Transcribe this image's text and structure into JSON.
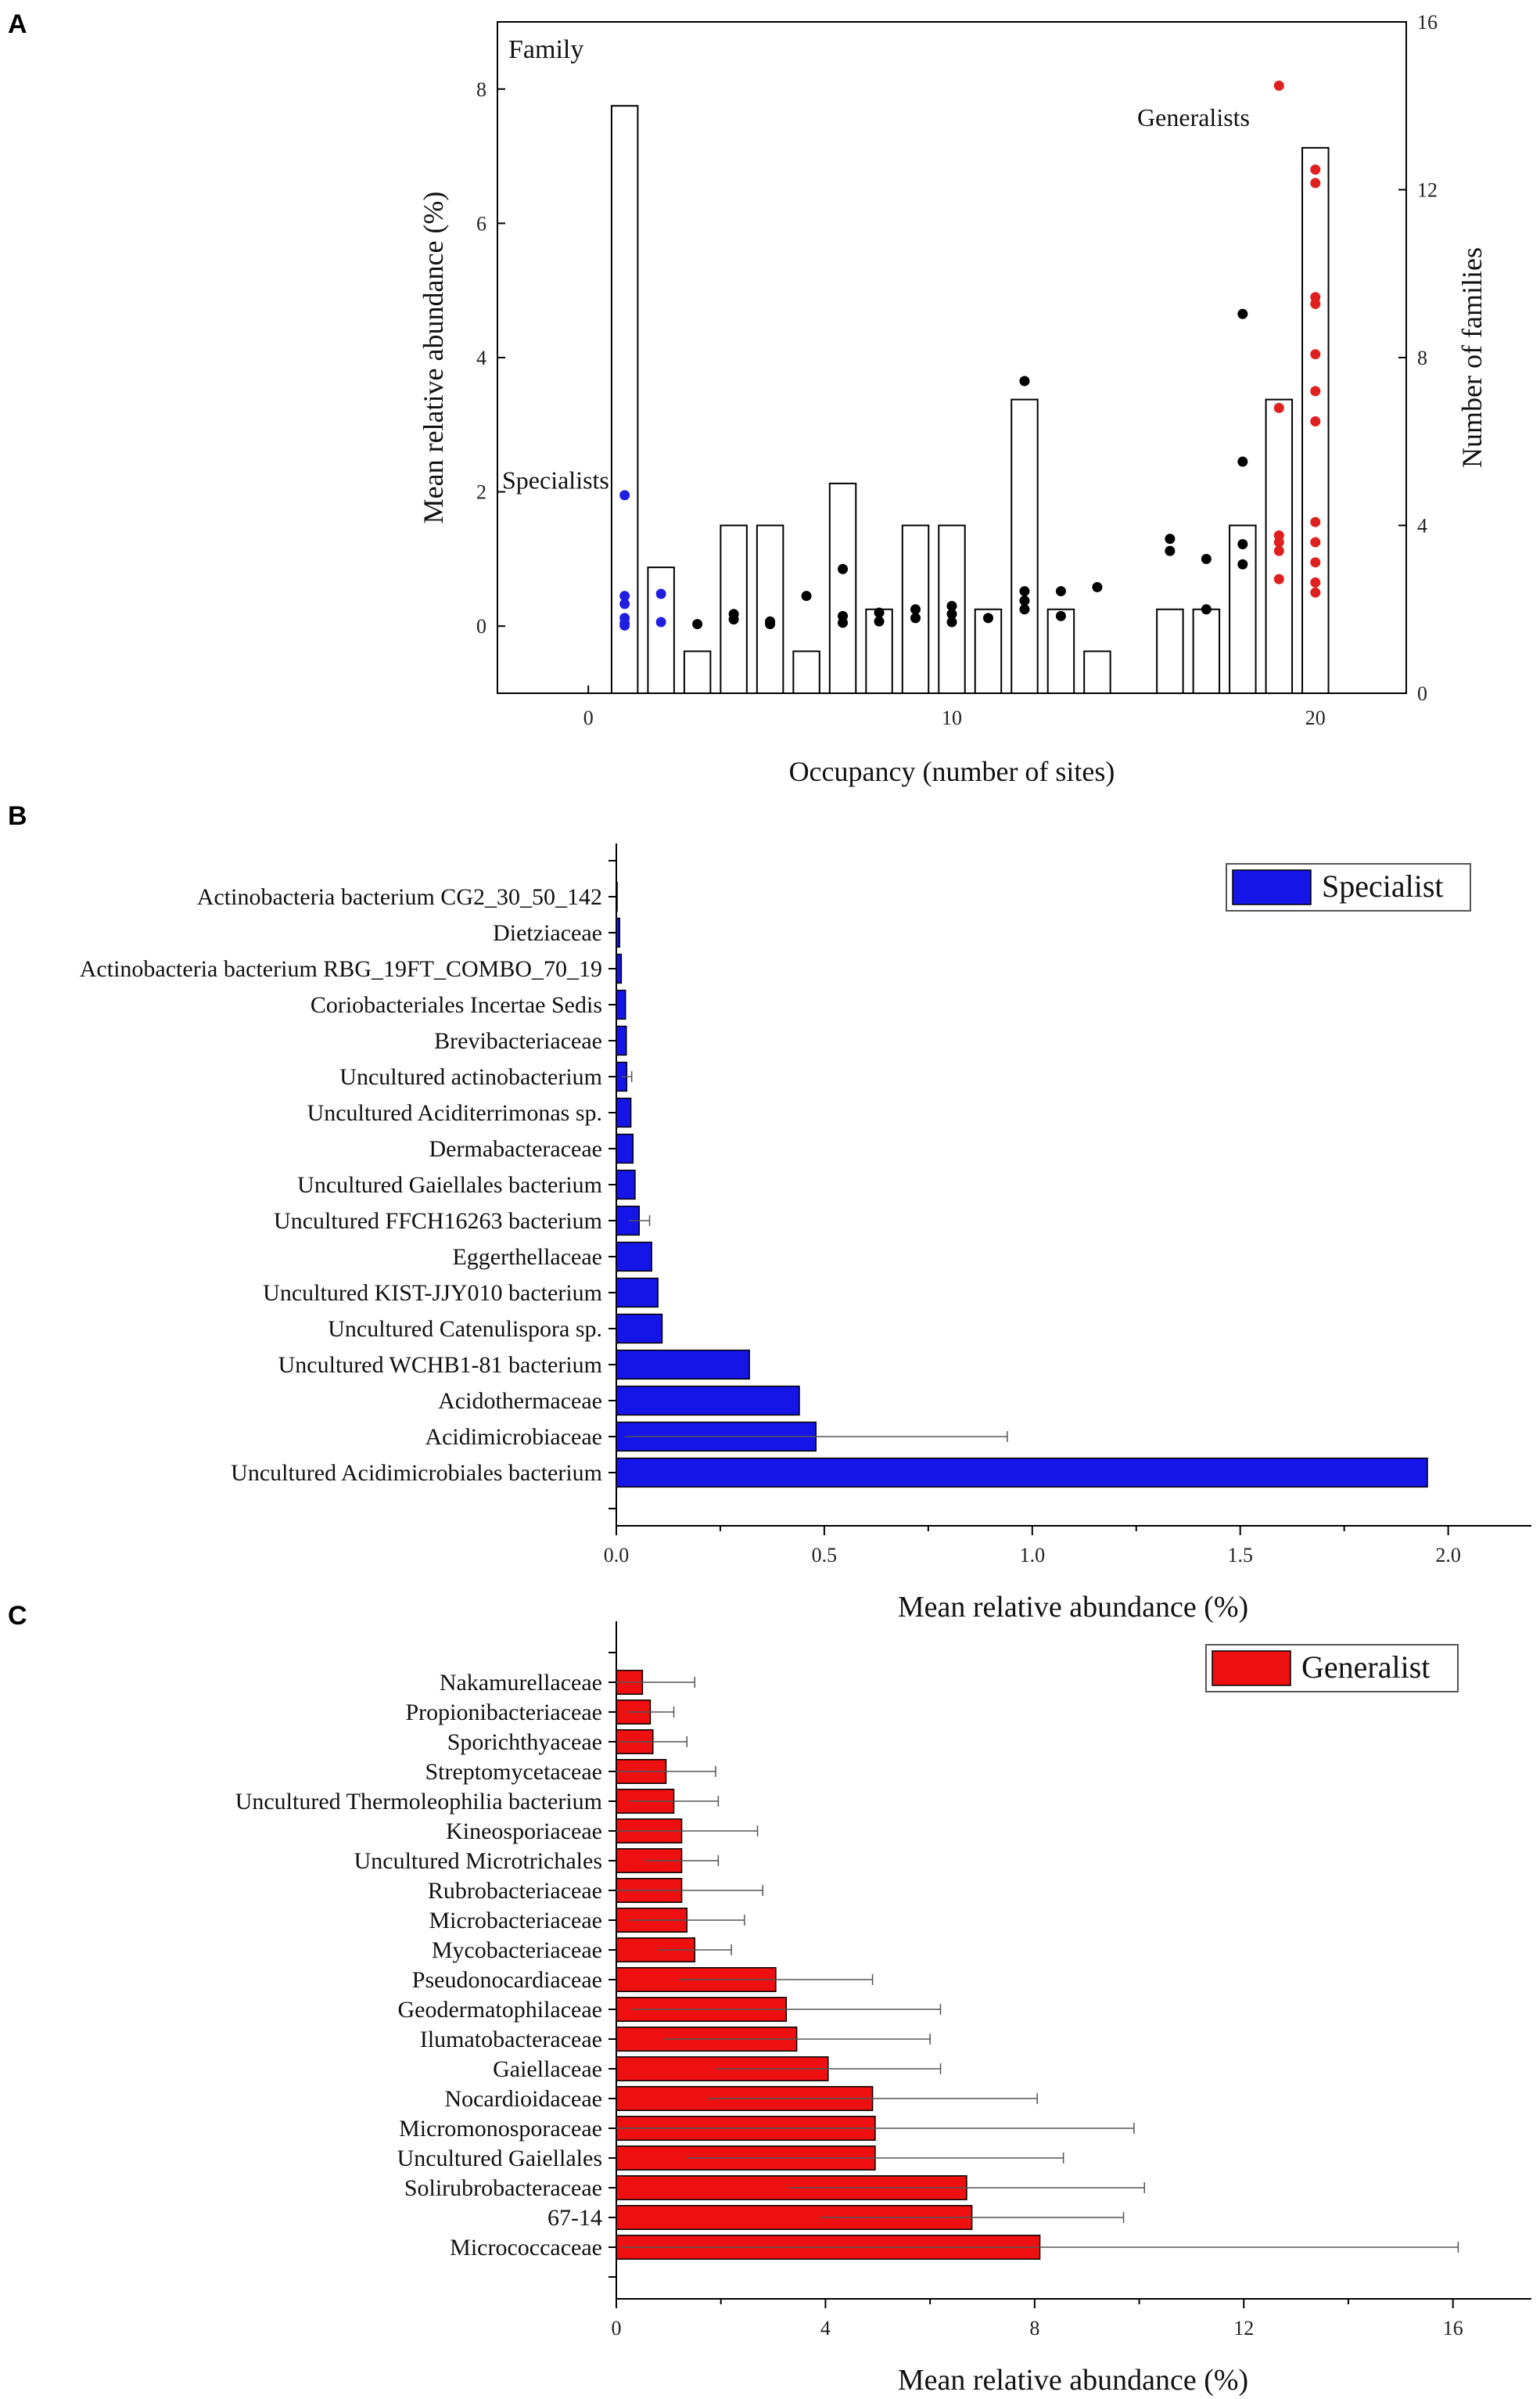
{
  "chart_data": [
    {
      "panel": "A",
      "type": "bar+scatter",
      "title": "Family",
      "xlabel": "Occupancy (number of sites)",
      "ylabel": "Mean relative abundance (%)",
      "y2label": "Number of families",
      "xlim": [
        -2.5,
        22.5
      ],
      "ylim": [
        -1,
        9
      ],
      "y2lim": [
        0,
        16
      ],
      "xticks": [
        0,
        10,
        20
      ],
      "yticks": [
        0,
        2,
        4,
        6,
        8
      ],
      "y2ticks": [
        0,
        4,
        8,
        12,
        16
      ],
      "annotations": {
        "specialists": "Specialists",
        "generalists": "Generalists"
      },
      "colors": {
        "specialist": "#1f1fe0",
        "generalist": "#e01f1f",
        "other": "#000000"
      },
      "bars": {
        "x": [
          1,
          2,
          3,
          4,
          5,
          6,
          7,
          8,
          9,
          10,
          11,
          12,
          13,
          14,
          16,
          17,
          18,
          19,
          20
        ],
        "values": [
          14,
          3,
          1,
          4,
          4,
          1,
          5,
          2,
          4,
          4,
          2,
          7,
          2,
          1,
          2,
          2,
          4,
          7,
          13
        ]
      },
      "points": [
        {
          "x": 1,
          "y": 1.95,
          "g": "specialist"
        },
        {
          "x": 1,
          "y": 0.45,
          "g": "specialist"
        },
        {
          "x": 1,
          "y": 0.33,
          "g": "specialist"
        },
        {
          "x": 1,
          "y": 0.12,
          "g": "specialist"
        },
        {
          "x": 1,
          "y": 0.04,
          "g": "specialist"
        },
        {
          "x": 1,
          "y": 0.01,
          "g": "specialist"
        },
        {
          "x": 2,
          "y": 0.48,
          "g": "specialist"
        },
        {
          "x": 2,
          "y": 0.06,
          "g": "specialist"
        },
        {
          "x": 3,
          "y": 0.03,
          "g": "other"
        },
        {
          "x": 4,
          "y": 0.18,
          "g": "other"
        },
        {
          "x": 4,
          "y": 0.1,
          "g": "other"
        },
        {
          "x": 5,
          "y": 0.07,
          "g": "other"
        },
        {
          "x": 5,
          "y": 0.03,
          "g": "other"
        },
        {
          "x": 6,
          "y": 0.45,
          "g": "other"
        },
        {
          "x": 7,
          "y": 0.85,
          "g": "other"
        },
        {
          "x": 7,
          "y": 0.15,
          "g": "other"
        },
        {
          "x": 7,
          "y": 0.05,
          "g": "other"
        },
        {
          "x": 8,
          "y": 0.2,
          "g": "other"
        },
        {
          "x": 8,
          "y": 0.07,
          "g": "other"
        },
        {
          "x": 9,
          "y": 0.25,
          "g": "other"
        },
        {
          "x": 9,
          "y": 0.12,
          "g": "other"
        },
        {
          "x": 10,
          "y": 0.3,
          "g": "other"
        },
        {
          "x": 10,
          "y": 0.18,
          "g": "other"
        },
        {
          "x": 10,
          "y": 0.06,
          "g": "other"
        },
        {
          "x": 11,
          "y": 0.12,
          "g": "other"
        },
        {
          "x": 12,
          "y": 3.65,
          "g": "other"
        },
        {
          "x": 12,
          "y": 0.52,
          "g": "other"
        },
        {
          "x": 12,
          "y": 0.38,
          "g": "other"
        },
        {
          "x": 12,
          "y": 0.25,
          "g": "other"
        },
        {
          "x": 13,
          "y": 0.52,
          "g": "other"
        },
        {
          "x": 13,
          "y": 0.15,
          "g": "other"
        },
        {
          "x": 14,
          "y": 0.58,
          "g": "other"
        },
        {
          "x": 16,
          "y": 1.3,
          "g": "other"
        },
        {
          "x": 16,
          "y": 1.12,
          "g": "other"
        },
        {
          "x": 17,
          "y": 1.0,
          "g": "other"
        },
        {
          "x": 17,
          "y": 0.25,
          "g": "other"
        },
        {
          "x": 18,
          "y": 4.65,
          "g": "other"
        },
        {
          "x": 18,
          "y": 2.45,
          "g": "other"
        },
        {
          "x": 18,
          "y": 1.22,
          "g": "other"
        },
        {
          "x": 18,
          "y": 0.92,
          "g": "other"
        },
        {
          "x": 19,
          "y": 8.05,
          "g": "generalist"
        },
        {
          "x": 19,
          "y": 3.25,
          "g": "generalist"
        },
        {
          "x": 19,
          "y": 1.35,
          "g": "generalist"
        },
        {
          "x": 19,
          "y": 1.25,
          "g": "generalist"
        },
        {
          "x": 19,
          "y": 1.12,
          "g": "generalist"
        },
        {
          "x": 19,
          "y": 0.7,
          "g": "generalist"
        },
        {
          "x": 20,
          "y": 6.8,
          "g": "generalist"
        },
        {
          "x": 20,
          "y": 6.6,
          "g": "generalist"
        },
        {
          "x": 20,
          "y": 4.9,
          "g": "generalist"
        },
        {
          "x": 20,
          "y": 4.8,
          "g": "generalist"
        },
        {
          "x": 20,
          "y": 4.05,
          "g": "generalist"
        },
        {
          "x": 20,
          "y": 3.5,
          "g": "generalist"
        },
        {
          "x": 20,
          "y": 3.05,
          "g": "generalist"
        },
        {
          "x": 20,
          "y": 1.55,
          "g": "generalist"
        },
        {
          "x": 20,
          "y": 1.25,
          "g": "generalist"
        },
        {
          "x": 20,
          "y": 0.95,
          "g": "generalist"
        },
        {
          "x": 20,
          "y": 0.65,
          "g": "generalist"
        },
        {
          "x": 20,
          "y": 0.5,
          "g": "generalist"
        }
      ]
    },
    {
      "panel": "B",
      "type": "bar",
      "orientation": "horizontal",
      "xlabel": "Mean relative abundance (%)",
      "legend": "Specialist",
      "legend_position": "top-right",
      "color": "#1515e8",
      "xlim": [
        0,
        2.2
      ],
      "xticks": [
        0.0,
        0.5,
        1.0,
        1.5,
        2.0
      ],
      "xtick_labels": [
        "0.0",
        "0.5",
        "1.0",
        "1.5",
        "2.0"
      ],
      "categories": [
        "Actinobacteria bacterium CG2_30_50_142",
        "Dietziaceae",
        "Actinobacteria bacterium RBG_19FT_COMBO_70_19",
        "Coriobacteriales Incertae Sedis",
        "Brevibacteriaceae",
        "Uncultured actinobacterium",
        "Uncultured Aciditerrimonas sp.",
        "Dermabacteraceae",
        "Uncultured Gaiellales bacterium",
        "Uncultured FFCH16263 bacterium",
        "Eggerthellaceae",
        "Uncultured KIST-JJY010 bacterium",
        "Uncultured Catenulispora sp.",
        "Uncultured WCHB1-81 bacterium",
        "Acidothermaceae",
        "Acidimicrobiaceae",
        "Uncultured Acidimicrobiales bacterium"
      ],
      "values": [
        0.002,
        0.008,
        0.012,
        0.022,
        0.024,
        0.025,
        0.035,
        0.04,
        0.045,
        0.055,
        0.085,
        0.1,
        0.11,
        0.32,
        0.44,
        0.48,
        1.95
      ],
      "errors": [
        0,
        0,
        0,
        0,
        0,
        0.012,
        0,
        0,
        0,
        0.025,
        0,
        0,
        0,
        0,
        0,
        0.46,
        0
      ]
    },
    {
      "panel": "C",
      "type": "bar",
      "orientation": "horizontal",
      "xlabel": "Mean relative abundance (%)",
      "legend": "Generalist",
      "legend_position": "top-right",
      "color": "#ee1010",
      "xlim": [
        0,
        17.5
      ],
      "xticks": [
        0,
        4,
        8,
        12,
        16
      ],
      "xtick_labels": [
        "0",
        "4",
        "8",
        "12",
        "16"
      ],
      "categories": [
        "Nakamurellaceae",
        "Propionibacteriaceae",
        "Sporichthyaceae",
        "Streptomycetaceae",
        "Uncultured Thermoleophilia bacterium",
        "Kineosporiaceae",
        "Uncultured Microtrichales",
        "Rubrobacteriaceae",
        "Microbacteriaceae",
        "Mycobacteriaceae",
        "Pseudonocardiaceae",
        "Geodermatophilaceae",
        "Ilumatobacteraceae",
        "Gaiellaceae",
        "Nocardioidaceae",
        "Micromonosporaceae",
        "Uncultured Gaiellales",
        "Solirubrobacteraceae",
        "67-14",
        "Micrococcaceae"
      ],
      "values": [
        0.5,
        0.65,
        0.7,
        0.95,
        1.1,
        1.25,
        1.25,
        1.25,
        1.35,
        1.5,
        3.05,
        3.25,
        3.45,
        4.05,
        4.9,
        4.95,
        4.95,
        6.7,
        6.8,
        8.1
      ],
      "errors": [
        1.0,
        0.45,
        0.65,
        0.95,
        0.85,
        1.45,
        0.7,
        1.55,
        1.1,
        0.7,
        1.85,
        2.95,
        2.55,
        2.15,
        3.15,
        4.95,
        3.6,
        3.4,
        2.9,
        8.0
      ]
    }
  ]
}
